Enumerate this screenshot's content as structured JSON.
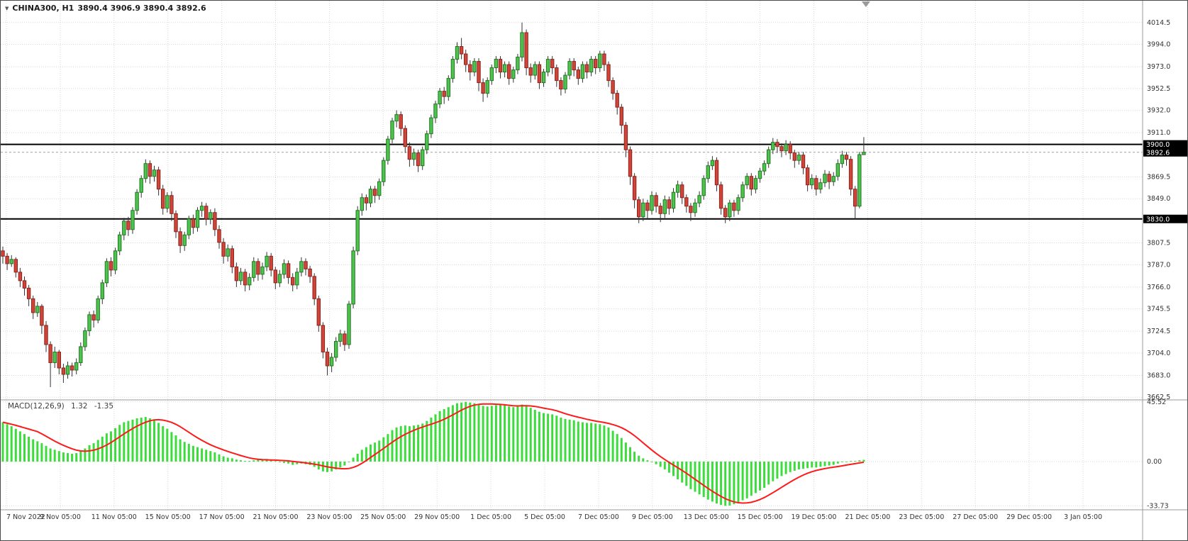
{
  "header": {
    "dropdown_icon": "▼",
    "symbol": "CHINA300, H1",
    "ohlc": "3890.4 3906.9 3890.4 3892.6"
  },
  "price_axis": {
    "ticks": [
      "4014.5",
      "3994.0",
      "3973.0",
      "3952.5",
      "3932.0",
      "3911.0",
      "3869.5",
      "3849.0",
      "3807.5",
      "3787.0",
      "3766.0",
      "3745.5",
      "3724.5",
      "3704.0",
      "3683.0",
      "3662.5"
    ],
    "badges": [
      {
        "name": "hline-upper-price-badge",
        "label": "3900.0",
        "level": 3900.0
      },
      {
        "name": "current-price-badge",
        "label": "3892.6",
        "level": 3892.6
      },
      {
        "name": "hline-lower-price-badge",
        "label": "3830.0",
        "level": 3830.0
      }
    ]
  },
  "time_axis": {
    "labels": [
      "7 Nov 2022",
      "9 Nov 05:00",
      "11 Nov 05:00",
      "15 Nov 05:00",
      "17 Nov 05:00",
      "21 Nov 05:00",
      "23 Nov 05:00",
      "25 Nov 05:00",
      "29 Nov 05:00",
      "1 Dec 05:00",
      "5 Dec 05:00",
      "7 Dec 05:00",
      "9 Dec 05:00",
      "13 Dec 05:00",
      "15 Dec 05:00",
      "19 Dec 05:00",
      "21 Dec 05:00",
      "23 Dec 05:00",
      "27 Dec 05:00",
      "29 Dec 05:00",
      "3 Jan 05:00"
    ]
  },
  "macd_panel": {
    "name": "MACD(12,26,9)",
    "main_value": "1.32",
    "signal_value": "-1.35",
    "ticks": [
      "45.52",
      "0.00",
      "-33.73"
    ]
  },
  "colors": {
    "bull_fill": "#4fc24f",
    "bull_border": "#1e7a1e",
    "bear_fill": "#d0453a",
    "bear_border": "#8c241c",
    "wick": "#333333",
    "grid": "#d8d8d8",
    "hline": "#000000",
    "current_line": "#a0a0a0",
    "macd_hist": "#3bdc3b",
    "macd_signal": "#ff1a1a",
    "badge_bg": "#000000",
    "badge_text": "#ffffff",
    "axis_text": "#333333",
    "separator": "#999999"
  },
  "chart_data": {
    "type": "candlestick",
    "title": "CHINA300, H1",
    "timeframe": "H1",
    "price_range": [
      3660,
      4035
    ],
    "horizontal_lines": [
      3900.0,
      3830.0
    ],
    "last_price": 3892.6,
    "x_labels_count": 21,
    "candles_ohlc": [
      [
        3800,
        3804,
        3788,
        3795
      ],
      [
        3795,
        3798,
        3782,
        3788
      ],
      [
        3788,
        3796,
        3785,
        3792
      ],
      [
        3792,
        3794,
        3775,
        3780
      ],
      [
        3780,
        3784,
        3766,
        3772
      ],
      [
        3772,
        3776,
        3758,
        3765
      ],
      [
        3765,
        3768,
        3748,
        3755
      ],
      [
        3755,
        3758,
        3736,
        3742
      ],
      [
        3742,
        3752,
        3738,
        3748
      ],
      [
        3748,
        3750,
        3722,
        3730
      ],
      [
        3730,
        3734,
        3705,
        3712
      ],
      [
        3712,
        3715,
        3672,
        3695
      ],
      [
        3695,
        3710,
        3690,
        3705
      ],
      [
        3705,
        3707,
        3684,
        3690
      ],
      [
        3690,
        3694,
        3676,
        3684
      ],
      [
        3684,
        3696,
        3680,
        3692
      ],
      [
        3692,
        3695,
        3682,
        3688
      ],
      [
        3688,
        3699,
        3684,
        3695
      ],
      [
        3695,
        3714,
        3692,
        3710
      ],
      [
        3710,
        3728,
        3706,
        3725
      ],
      [
        3725,
        3743,
        3720,
        3740
      ],
      [
        3740,
        3744,
        3728,
        3735
      ],
      [
        3735,
        3758,
        3732,
        3755
      ],
      [
        3755,
        3773,
        3750,
        3770
      ],
      [
        3770,
        3793,
        3766,
        3790
      ],
      [
        3790,
        3794,
        3776,
        3782
      ],
      [
        3782,
        3803,
        3778,
        3800
      ],
      [
        3800,
        3818,
        3796,
        3815
      ],
      [
        3815,
        3831,
        3810,
        3828
      ],
      [
        3828,
        3832,
        3814,
        3820
      ],
      [
        3820,
        3841,
        3816,
        3838
      ],
      [
        3838,
        3858,
        3834,
        3855
      ],
      [
        3855,
        3871,
        3850,
        3868
      ],
      [
        3868,
        3886,
        3864,
        3882
      ],
      [
        3882,
        3885,
        3863,
        3870
      ],
      [
        3870,
        3880,
        3865,
        3876
      ],
      [
        3876,
        3879,
        3852,
        3858
      ],
      [
        3858,
        3862,
        3834,
        3840
      ],
      [
        3840,
        3855,
        3836,
        3852
      ],
      [
        3852,
        3856,
        3828,
        3835
      ],
      [
        3835,
        3838,
        3812,
        3818
      ],
      [
        3818,
        3822,
        3798,
        3805
      ],
      [
        3805,
        3818,
        3800,
        3815
      ],
      [
        3815,
        3833,
        3811,
        3830
      ],
      [
        3830,
        3834,
        3816,
        3822
      ],
      [
        3822,
        3841,
        3818,
        3838
      ],
      [
        3838,
        3846,
        3832,
        3842
      ],
      [
        3842,
        3845,
        3824,
        3830
      ],
      [
        3830,
        3839,
        3825,
        3836
      ],
      [
        3836,
        3840,
        3814,
        3820
      ],
      [
        3820,
        3824,
        3802,
        3808
      ],
      [
        3808,
        3812,
        3788,
        3795
      ],
      [
        3795,
        3806,
        3790,
        3802
      ],
      [
        3802,
        3805,
        3779,
        3785
      ],
      [
        3785,
        3789,
        3766,
        3772
      ],
      [
        3772,
        3784,
        3768,
        3780
      ],
      [
        3780,
        3783,
        3762,
        3768
      ],
      [
        3768,
        3779,
        3763,
        3775
      ],
      [
        3775,
        3794,
        3771,
        3790
      ],
      [
        3790,
        3793,
        3772,
        3778
      ],
      [
        3778,
        3789,
        3773,
        3785
      ],
      [
        3785,
        3799,
        3781,
        3795
      ],
      [
        3795,
        3798,
        3776,
        3782
      ],
      [
        3782,
        3785,
        3764,
        3770
      ],
      [
        3770,
        3782,
        3766,
        3778
      ],
      [
        3778,
        3792,
        3774,
        3788
      ],
      [
        3788,
        3791,
        3769,
        3775
      ],
      [
        3775,
        3779,
        3762,
        3768
      ],
      [
        3768,
        3784,
        3764,
        3780
      ],
      [
        3780,
        3794,
        3776,
        3790
      ],
      [
        3790,
        3793,
        3777,
        3783
      ],
      [
        3783,
        3786,
        3770,
        3776
      ],
      [
        3776,
        3779,
        3749,
        3755
      ],
      [
        3755,
        3758,
        3724,
        3730
      ],
      [
        3730,
        3733,
        3699,
        3705
      ],
      [
        3705,
        3709,
        3683,
        3692
      ],
      [
        3692,
        3704,
        3686,
        3700
      ],
      [
        3700,
        3719,
        3696,
        3715
      ],
      [
        3715,
        3726,
        3710,
        3722
      ],
      [
        3722,
        3725,
        3706,
        3712
      ],
      [
        3712,
        3753,
        3708,
        3750
      ],
      [
        3750,
        3804,
        3746,
        3800
      ],
      [
        3800,
        3842,
        3796,
        3838
      ],
      [
        3838,
        3854,
        3833,
        3850
      ],
      [
        3850,
        3853,
        3838,
        3845
      ],
      [
        3845,
        3861,
        3841,
        3858
      ],
      [
        3858,
        3861,
        3845,
        3852
      ],
      [
        3852,
        3868,
        3848,
        3865
      ],
      [
        3865,
        3888,
        3861,
        3885
      ],
      [
        3885,
        3908,
        3881,
        3905
      ],
      [
        3905,
        3925,
        3901,
        3922
      ],
      [
        3922,
        3932,
        3916,
        3928
      ],
      [
        3928,
        3931,
        3908,
        3915
      ],
      [
        3915,
        3918,
        3892,
        3898
      ],
      [
        3898,
        3902,
        3879,
        3886
      ],
      [
        3886,
        3896,
        3880,
        3892
      ],
      [
        3892,
        3895,
        3874,
        3880
      ],
      [
        3880,
        3898,
        3876,
        3895
      ],
      [
        3895,
        3913,
        3891,
        3910
      ],
      [
        3910,
        3928,
        3906,
        3925
      ],
      [
        3925,
        3941,
        3920,
        3938
      ],
      [
        3938,
        3953,
        3934,
        3950
      ],
      [
        3950,
        3954,
        3938,
        3945
      ],
      [
        3945,
        3965,
        3941,
        3962
      ],
      [
        3962,
        3983,
        3958,
        3980
      ],
      [
        3980,
        3996,
        3976,
        3992
      ],
      [
        3992,
        4000,
        3980,
        3985
      ],
      [
        3985,
        3989,
        3968,
        3975
      ],
      [
        3975,
        3979,
        3960,
        3968
      ],
      [
        3968,
        3981,
        3964,
        3978
      ],
      [
        3978,
        3981,
        3950,
        3958
      ],
      [
        3958,
        3962,
        3940,
        3948
      ],
      [
        3948,
        3963,
        3944,
        3960
      ],
      [
        3960,
        3975,
        3956,
        3972
      ],
      [
        3972,
        3983,
        3967,
        3980
      ],
      [
        3980,
        3983,
        3962,
        3968
      ],
      [
        3968,
        3978,
        3963,
        3975
      ],
      [
        3975,
        3978,
        3956,
        3962
      ],
      [
        3962,
        3973,
        3958,
        3970
      ],
      [
        3970,
        3985,
        3966,
        3982
      ],
      [
        3982,
        4014.5,
        3978,
        4005
      ],
      [
        4005,
        4008,
        3965,
        3972
      ],
      [
        3972,
        3976,
        3958,
        3965
      ],
      [
        3965,
        3978,
        3961,
        3975
      ],
      [
        3975,
        3978,
        3952,
        3958
      ],
      [
        3958,
        3971,
        3954,
        3968
      ],
      [
        3968,
        3983,
        3964,
        3980
      ],
      [
        3980,
        3983,
        3966,
        3972
      ],
      [
        3972,
        3975,
        3954,
        3960
      ],
      [
        3960,
        3963,
        3946,
        3952
      ],
      [
        3952,
        3968,
        3948,
        3965
      ],
      [
        3965,
        3981,
        3961,
        3978
      ],
      [
        3978,
        3981,
        3964,
        3970
      ],
      [
        3970,
        3973,
        3956,
        3962
      ],
      [
        3962,
        3978,
        3958,
        3975
      ],
      [
        3975,
        3978,
        3962,
        3968
      ],
      [
        3968,
        3983,
        3964,
        3980
      ],
      [
        3980,
        3983,
        3966,
        3972
      ],
      [
        3972,
        3988,
        3968,
        3985
      ],
      [
        3985,
        3988,
        3969,
        3975
      ],
      [
        3975,
        3978,
        3954,
        3960
      ],
      [
        3960,
        3963,
        3942,
        3948
      ],
      [
        3948,
        3951,
        3928,
        3935
      ],
      [
        3935,
        3938,
        3910,
        3918
      ],
      [
        3918,
        3921,
        3888,
        3895
      ],
      [
        3895,
        3898,
        3862,
        3870
      ],
      [
        3870,
        3873,
        3840,
        3848
      ],
      [
        3848,
        3851,
        3826,
        3832
      ],
      [
        3832,
        3849,
        3828,
        3845
      ],
      [
        3845,
        3848,
        3830,
        3838
      ],
      [
        3838,
        3856,
        3834,
        3852
      ],
      [
        3852,
        3855,
        3836,
        3842
      ],
      [
        3842,
        3845,
        3827,
        3835
      ],
      [
        3835,
        3852,
        3831,
        3848
      ],
      [
        3848,
        3851,
        3834,
        3840
      ],
      [
        3840,
        3859,
        3836,
        3855
      ],
      [
        3855,
        3866,
        3850,
        3862
      ],
      [
        3862,
        3865,
        3844,
        3850
      ],
      [
        3850,
        3853,
        3836,
        3842
      ],
      [
        3842,
        3845,
        3828,
        3836
      ],
      [
        3836,
        3849,
        3832,
        3845
      ],
      [
        3845,
        3856,
        3841,
        3852
      ],
      [
        3852,
        3871,
        3848,
        3868
      ],
      [
        3868,
        3884,
        3864,
        3880
      ],
      [
        3880,
        3889,
        3876,
        3885
      ],
      [
        3885,
        3888,
        3856,
        3862
      ],
      [
        3862,
        3865,
        3834,
        3840
      ],
      [
        3840,
        3843,
        3826,
        3832
      ],
      [
        3832,
        3848,
        3828,
        3845
      ],
      [
        3845,
        3848,
        3832,
        3838
      ],
      [
        3838,
        3853,
        3834,
        3850
      ],
      [
        3850,
        3865,
        3846,
        3862
      ],
      [
        3862,
        3873,
        3858,
        3870
      ],
      [
        3870,
        3873,
        3852,
        3858
      ],
      [
        3858,
        3871,
        3854,
        3868
      ],
      [
        3868,
        3878,
        3864,
        3875
      ],
      [
        3875,
        3885,
        3871,
        3882
      ],
      [
        3882,
        3898,
        3878,
        3895
      ],
      [
        3895,
        3906,
        3891,
        3902
      ],
      [
        3902,
        3905,
        3892,
        3898
      ],
      [
        3898,
        3901,
        3888,
        3894
      ],
      [
        3894,
        3904,
        3890,
        3900
      ],
      [
        3900,
        3903,
        3886,
        3892
      ],
      [
        3892,
        3895,
        3878,
        3885
      ],
      [
        3885,
        3893,
        3881,
        3890
      ],
      [
        3890,
        3893,
        3872,
        3878
      ],
      [
        3878,
        3881,
        3856,
        3862
      ],
      [
        3862,
        3872,
        3858,
        3868
      ],
      [
        3868,
        3871,
        3852,
        3858
      ],
      [
        3858,
        3868,
        3854,
        3864
      ],
      [
        3864,
        3876,
        3860,
        3872
      ],
      [
        3872,
        3875,
        3858,
        3865
      ],
      [
        3865,
        3874,
        3861,
        3870
      ],
      [
        3870,
        3886,
        3866,
        3882
      ],
      [
        3882,
        3894,
        3878,
        3890
      ],
      [
        3890,
        3893,
        3880,
        3886
      ],
      [
        3886,
        3889,
        3852,
        3858
      ],
      [
        3858,
        3861,
        3830,
        3842
      ],
      [
        3842,
        3893,
        3840,
        3890.4
      ],
      [
        3890.4,
        3906.9,
        3890.4,
        3892.6
      ]
    ],
    "indicator": {
      "type": "MACD",
      "params": [
        12,
        26,
        9
      ],
      "last_values": [
        1.32,
        -1.35
      ],
      "axis_range": [
        -33.73,
        45.52
      ],
      "signal_period": 9,
      "histogram": [
        30,
        28.5,
        27,
        25,
        23,
        21,
        19,
        17,
        15.5,
        14,
        12,
        10,
        9,
        8,
        7,
        6.5,
        6,
        6.5,
        8,
        10,
        12.5,
        14,
        16.5,
        19,
        21.5,
        23,
        25.5,
        28,
        30,
        31,
        32,
        33,
        33.5,
        34,
        33,
        31.5,
        29.5,
        27,
        25,
        22.5,
        20,
        17,
        15,
        13.5,
        12,
        11,
        10,
        9,
        8,
        7,
        5.5,
        4,
        3,
        2.5,
        1.5,
        1,
        0.5,
        0.5,
        1,
        1.5,
        1.5,
        2,
        1.5,
        0.5,
        -0.5,
        -1,
        -1.5,
        -2.5,
        -2,
        -1.5,
        -2,
        -2.5,
        -4,
        -6,
        -7.5,
        -8,
        -7.5,
        -6,
        -4.5,
        -3,
        -0.5,
        3,
        6,
        9,
        11,
        13,
        14.5,
        16,
        18.5,
        21,
        24,
        26,
        27,
        27.5,
        27,
        27.5,
        28,
        29,
        31,
        33.5,
        36,
        38.5,
        40,
        41.5,
        43,
        44.5,
        45,
        45.5,
        45,
        44.5,
        43.5,
        42.5,
        42,
        42.5,
        43,
        43.5,
        43,
        42,
        41.5,
        42,
        43.5,
        42.5,
        41,
        39.5,
        38,
        37,
        36.5,
        36,
        35,
        33.5,
        32.5,
        32,
        31.5,
        30.5,
        30,
        29.5,
        29.5,
        29,
        28.5,
        27.5,
        26,
        23.5,
        21,
        18,
        14.5,
        11,
        7.5,
        4.5,
        2.5,
        1,
        -0.5,
        -2,
        -4,
        -6,
        -8.5,
        -11,
        -13.5,
        -16,
        -18.5,
        -21,
        -23,
        -25,
        -27,
        -29,
        -30.5,
        -32,
        -33,
        -33.7,
        -33.5,
        -32.5,
        -31,
        -29.5,
        -28,
        -26,
        -24,
        -22,
        -20,
        -17.5,
        -15,
        -13,
        -11,
        -9.5,
        -8,
        -7,
        -6,
        -5.5,
        -5,
        -4.5,
        -4.5,
        -4,
        -3.5,
        -3,
        -2.5,
        -1.5,
        -0.5,
        0,
        0.5,
        0.5,
        1,
        1.32
      ]
    }
  }
}
